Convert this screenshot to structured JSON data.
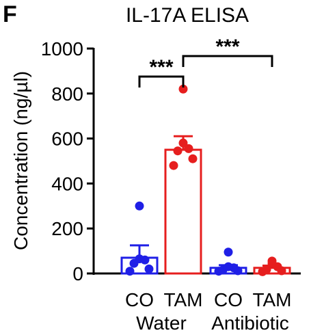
{
  "panel_label": "F",
  "chart_data": {
    "type": "bar",
    "title": "IL-17A ELISA",
    "xlabel": "",
    "ylabel": "Concentration (ng/µl)",
    "ylim": [
      0,
      1000
    ],
    "yticks": [
      "0",
      "200",
      "400",
      "600",
      "800",
      "1000"
    ],
    "grid": false,
    "bars": [
      {
        "label": "CO",
        "group": "Water",
        "mean": 70,
        "sem": 55,
        "color": "#1f1fe6",
        "points": [
          10,
          20,
          45,
          60,
          65,
          300
        ]
      },
      {
        "label": "TAM",
        "group": "Water",
        "mean": 550,
        "sem": 60,
        "color": "#e61e1e",
        "points": [
          480,
          510,
          545,
          555,
          580,
          820
        ]
      },
      {
        "label": "CO",
        "group": "Antibiotic",
        "mean": 25,
        "sem": 12,
        "color": "#1f1fe6",
        "points": [
          10,
          12,
          15,
          25,
          30,
          95
        ]
      },
      {
        "label": "TAM",
        "group": "Antibiotic",
        "mean": 25,
        "sem": 10,
        "color": "#e61e1e",
        "points": [
          8,
          12,
          18,
          30,
          45,
          55
        ]
      }
    ],
    "groups": [
      "Water",
      "Antibiotic"
    ],
    "significance": [
      {
        "from": 0,
        "to": 1,
        "label": "***"
      },
      {
        "from": 1,
        "to": 3,
        "label": "***"
      }
    ]
  }
}
